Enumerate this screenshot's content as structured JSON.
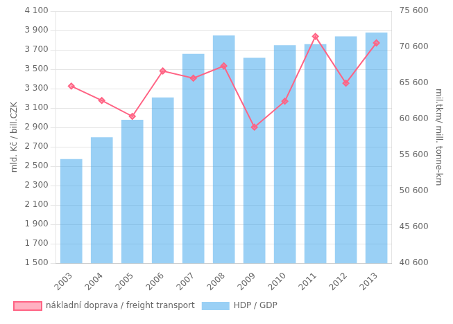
{
  "chart_data": {
    "type": "bar",
    "categories": [
      "2003",
      "2004",
      "2005",
      "2006",
      "2007",
      "2008",
      "2009",
      "2010",
      "2011",
      "2012",
      "2013"
    ],
    "series": [
      {
        "name": "HDP / GDP",
        "type": "bar",
        "values": [
          2575,
          2800,
          2980,
          3210,
          3660,
          3850,
          3620,
          3750,
          3760,
          3840,
          3880
        ]
      },
      {
        "name": "nákladní doprava / freight transport",
        "type": "line",
        "marker": "diamond",
        "axis": "y2",
        "values": [
          65200,
          63200,
          61000,
          67300,
          66300,
          68000,
          59500,
          63100,
          72100,
          65600,
          71200
        ]
      }
    ],
    "ylabel": "mld. Kč / bill.CZK",
    "y2label": "mil.tkm/ mill. tonne-km",
    "ylim": [
      1500,
      4100
    ],
    "yticks": [
      {
        "value": 1500,
        "label": "1 500"
      },
      {
        "value": 1700,
        "label": "1 700"
      },
      {
        "value": 1900,
        "label": "1 900"
      },
      {
        "value": 2100,
        "label": "2 100"
      },
      {
        "value": 2300,
        "label": "2 300"
      },
      {
        "value": 2500,
        "label": "2 500"
      },
      {
        "value": 2700,
        "label": "2 700"
      },
      {
        "value": 2900,
        "label": "2 900"
      },
      {
        "value": 3100,
        "label": "3 100"
      },
      {
        "value": 3300,
        "label": "3 300"
      },
      {
        "value": 3500,
        "label": "3 500"
      },
      {
        "value": 3700,
        "label": "3 700"
      },
      {
        "value": 3900,
        "label": "3 900"
      },
      {
        "value": 4100,
        "label": "4 100"
      }
    ],
    "y2lim": [
      40600,
      75600
    ],
    "y2ticks": [
      {
        "value": 40600,
        "label": "40 600"
      },
      {
        "value": 45600,
        "label": "45 600"
      },
      {
        "value": 50600,
        "label": "50 600"
      },
      {
        "value": 55600,
        "label": "55 600"
      },
      {
        "value": 60600,
        "label": "60 600"
      },
      {
        "value": 65600,
        "label": "65 600"
      },
      {
        "value": 70600,
        "label": "70 600"
      },
      {
        "value": 75600,
        "label": "75 600"
      }
    ],
    "grid": true,
    "legend": "lower left"
  }
}
